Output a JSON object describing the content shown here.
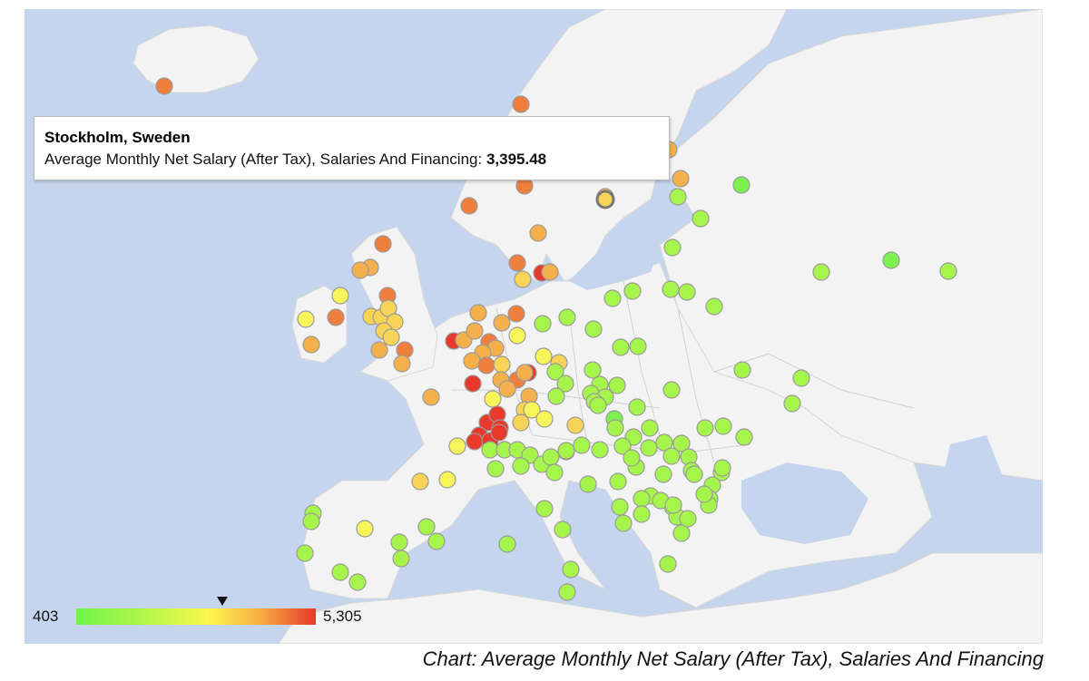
{
  "tooltip": {
    "city": "Stockholm, Sweden",
    "metric_label": "Average Monthly Net Salary (After Tax), Salaries And Financing:",
    "value": "3,395.48"
  },
  "legend": {
    "min": "403",
    "max": "5,305",
    "marker_value": 3395.48,
    "colors": [
      "#6ff44c",
      "#b6f74a",
      "#fbf74d",
      "#f5a842",
      "#e8382a"
    ]
  },
  "caption": "Chart: Average Monthly Net Salary (After Tax), Salaries And Financing",
  "colors": {
    "sea": "#c6d5ee",
    "land": "#f3f3f3"
  },
  "chart_data": {
    "type": "geo-bubble",
    "region": "Europe",
    "color_axis": {
      "min": 403,
      "max": 5305
    },
    "highlighted_point": {
      "city": "Stockholm, Sweden",
      "value": 3395.48
    }
  }
}
